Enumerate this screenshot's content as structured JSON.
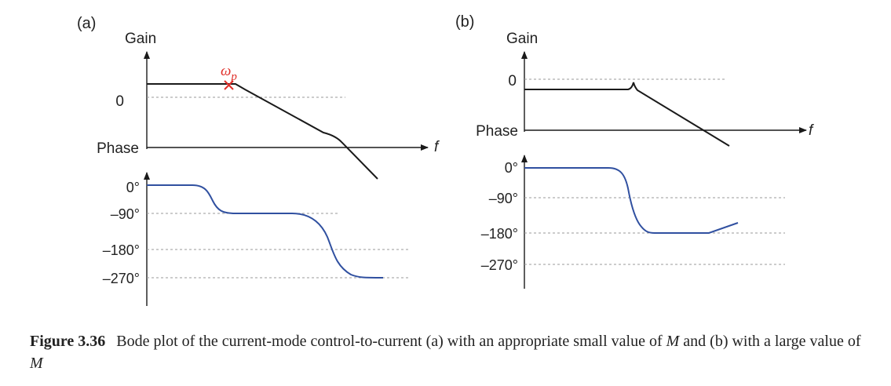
{
  "panel_a": {
    "tag": "(a)",
    "gain_label": "Gain",
    "gain_zero": "0",
    "phase_label": "Phase",
    "f_label": "f",
    "pole_label": "ωp",
    "pole_sub": "p",
    "pole_base": "ω",
    "phase_ticks": [
      "0°",
      "–90°",
      "–180°",
      "–270°"
    ]
  },
  "panel_b": {
    "tag": "(b)",
    "gain_label": "Gain",
    "gain_zero": "0",
    "phase_label": "Phase",
    "f_label": "f",
    "phase_ticks": [
      "0°",
      "–90°",
      "–180°",
      "–270°"
    ]
  },
  "colors": {
    "gain": "#1a1a1a",
    "phase": "#3050a0",
    "pole": "#e0302a",
    "grid": "#999999"
  },
  "caption": {
    "fig_label": "Figure 3.36",
    "text_1": "Bode plot of the current-mode control-to-current (a) with an appropriate small value of ",
    "m1": "M",
    "text_2": " and (b) with a large value of ",
    "m2": "M"
  }
}
